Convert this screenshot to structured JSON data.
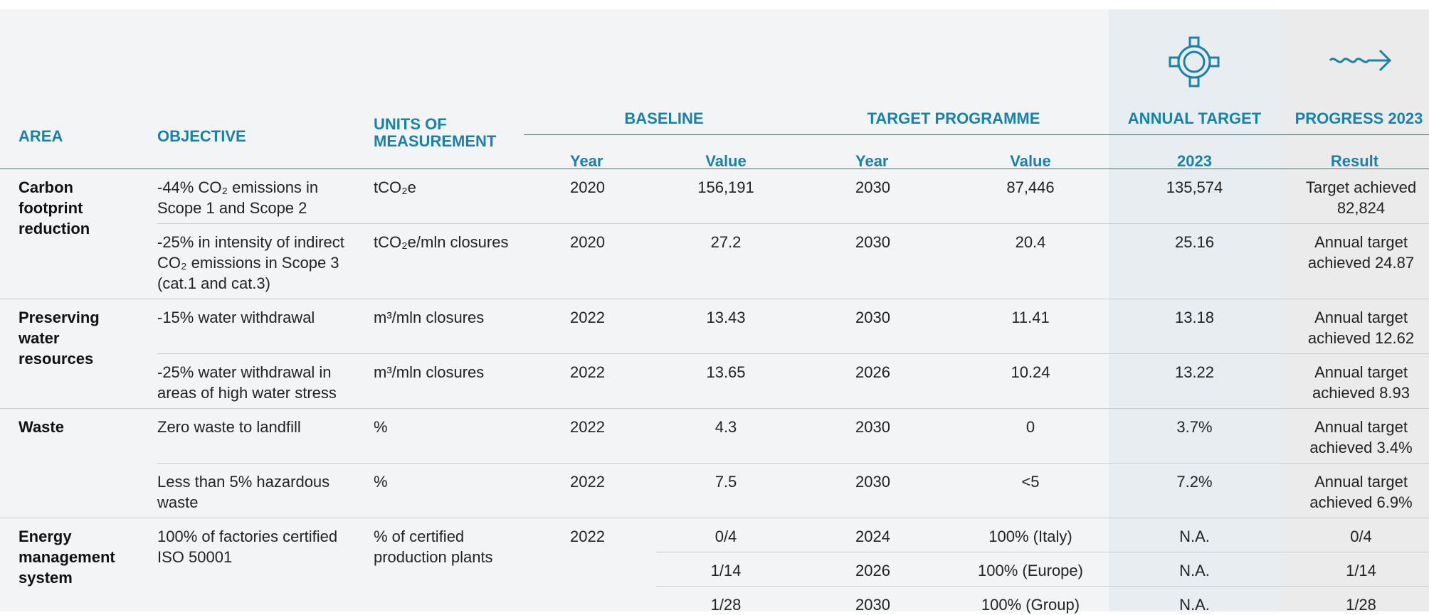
{
  "header": {
    "columns": [
      "AREA",
      "OBJECTIVE",
      "UNITS OF MEASUREMENT"
    ],
    "groups": [
      {
        "title": "BASELINE",
        "sub": [
          "Year",
          "Value"
        ]
      },
      {
        "title": "TARGET PROGRAMME",
        "sub": [
          "Year",
          "Value"
        ]
      },
      {
        "title": "ANNUAL TARGET",
        "sub": [
          "2023"
        ]
      },
      {
        "title": "PROGRESS 2023",
        "sub": [
          "Result"
        ]
      }
    ]
  },
  "rows": [
    {
      "area": "Carbon footprint reduction",
      "items": [
        {
          "objective": "-44% CO₂ emissions in Scope 1 and Scope 2",
          "units": "tCO₂e",
          "baseline_year": "2020",
          "lines": [
            [
              "156,191",
              "2030",
              "87,446",
              "135,574",
              "Target achieved 82,824"
            ]
          ]
        },
        {
          "objective": "-25% in intensity of indirect CO₂ emissions in Scope 3 (cat.1 and cat.3)",
          "units": "tCO₂e/mln closures",
          "baseline_year": "2020",
          "lines": [
            [
              "27.2",
              "2030",
              "20.4",
              "25.16",
              "Annual target achieved 24.87"
            ]
          ]
        }
      ]
    },
    {
      "area": "Preserving water resources",
      "items": [
        {
          "objective": "-15% water withdrawal",
          "units": "m³/mln closures",
          "baseline_year": "2022",
          "lines": [
            [
              "13.43",
              "2030",
              "11.41",
              "13.18",
              "Annual target achieved 12.62"
            ]
          ]
        },
        {
          "objective": "-25% water withdrawal in areas of high water stress",
          "units": "m³/mln closures",
          "baseline_year": "2022",
          "lines": [
            [
              "13.65",
              "2026",
              "10.24",
              "13.22",
              "Annual target achieved 8.93"
            ]
          ]
        }
      ]
    },
    {
      "area": "Waste",
      "items": [
        {
          "objective": "Zero waste to landfill",
          "units": "%",
          "baseline_year": "2022",
          "lines": [
            [
              "4.3",
              "2030",
              "0",
              "3.7%",
              "Annual target achieved 3.4%"
            ]
          ]
        },
        {
          "objective": "Less than 5% hazardous waste",
          "units": "%",
          "baseline_year": "2022",
          "lines": [
            [
              "7.5",
              "2030",
              "<5",
              "7.2%",
              "Annual target achieved 6.9%"
            ]
          ]
        }
      ]
    },
    {
      "area": "Energy management system",
      "items": [
        {
          "objective": "100% of factories certified ISO 50001",
          "units": "% of certified production plants",
          "baseline_year": "2022",
          "lines": [
            [
              "0/4",
              "2024",
              "100% (Italy)",
              "N.A.",
              "0/4"
            ],
            [
              "1/14",
              "2026",
              "100% (Europe)",
              "N.A.",
              "1/14"
            ],
            [
              "1/28",
              "2030",
              "100% (Group)",
              "N.A.",
              "1/28"
            ]
          ]
        }
      ]
    }
  ]
}
